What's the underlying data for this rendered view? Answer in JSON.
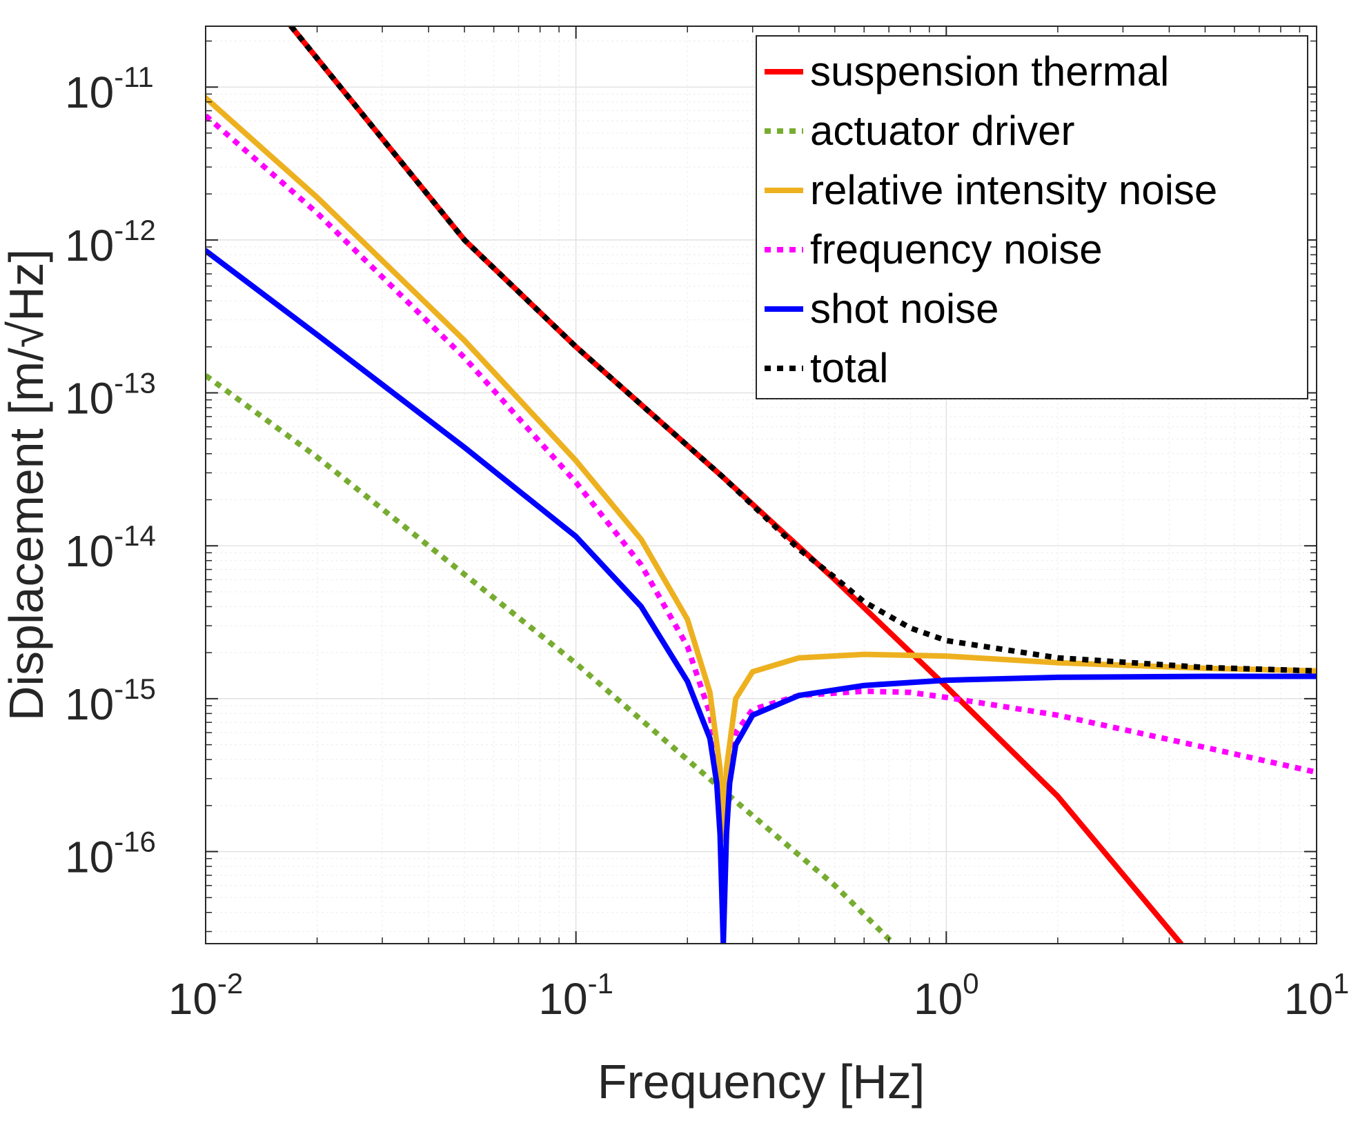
{
  "chart_data": {
    "type": "line",
    "title": "",
    "xlabel": "Frequency [Hz]",
    "ylabel": "Displacement [m/√Hz]",
    "xscale": "log",
    "yscale": "log",
    "xlim": [
      0.01,
      10
    ],
    "ylim": [
      2.5e-17,
      2.5e-11
    ],
    "grid": true,
    "legend_position": "top-right",
    "x_ticks": [
      {
        "base": "10",
        "exp": "-2",
        "value": 0.01
      },
      {
        "base": "10",
        "exp": "-1",
        "value": 0.1
      },
      {
        "base": "10",
        "exp": "0",
        "value": 1
      },
      {
        "base": "10",
        "exp": "1",
        "value": 10
      }
    ],
    "y_ticks": [
      {
        "base": "10",
        "exp": "-11",
        "value": 1e-11
      },
      {
        "base": "10",
        "exp": "-12",
        "value": 1e-12
      },
      {
        "base": "10",
        "exp": "-13",
        "value": 1e-13
      },
      {
        "base": "10",
        "exp": "-14",
        "value": 1e-14
      },
      {
        "base": "10",
        "exp": "-15",
        "value": 1e-15
      },
      {
        "base": "10",
        "exp": "-16",
        "value": 1e-16
      }
    ],
    "series": [
      {
        "name": "suspension thermal",
        "color": "#ff0000",
        "style": "solid",
        "x": [
          0.017,
          0.05,
          0.1,
          0.25,
          0.5,
          1,
          2,
          4.3
        ],
        "y": [
          2.5e-11,
          1e-12,
          2e-13,
          2.8e-14,
          6e-15,
          1.2e-15,
          2.3e-16,
          2.5e-17
        ]
      },
      {
        "name": "actuator driver",
        "color": "#77ac30",
        "style": "dotted",
        "x": [
          0.01,
          0.02,
          0.05,
          0.1,
          0.25,
          0.5,
          0.72
        ],
        "y": [
          1.3e-13,
          3.8e-14,
          6.5e-15,
          1.7e-15,
          2.5e-16,
          6e-17,
          2.5e-17
        ]
      },
      {
        "name": "relative intensity noise",
        "color": "#edb120",
        "style": "solid",
        "x": [
          0.01,
          0.02,
          0.05,
          0.1,
          0.15,
          0.2,
          0.23,
          0.245,
          0.25,
          0.255,
          0.27,
          0.3,
          0.4,
          0.6,
          1,
          2,
          5,
          10
        ],
        "y": [
          8.5e-12,
          1.9e-12,
          2.2e-13,
          3.6e-14,
          1.1e-14,
          3.3e-15,
          1.1e-15,
          3.5e-16,
          1.2e-16,
          3.5e-16,
          1e-15,
          1.5e-15,
          1.85e-15,
          1.95e-15,
          1.9e-15,
          1.72e-15,
          1.58e-15,
          1.52e-15
        ]
      },
      {
        "name": "frequency noise",
        "color": "#ff00ff",
        "style": "dotted",
        "x": [
          0.01,
          0.02,
          0.05,
          0.1,
          0.15,
          0.2,
          0.23,
          0.245,
          0.25,
          0.255,
          0.27,
          0.3,
          0.4,
          0.6,
          0.8,
          1,
          2,
          5,
          10
        ],
        "y": [
          6.5e-12,
          1.5e-12,
          1.7e-13,
          2.6e-14,
          7.5e-15,
          2.2e-15,
          8e-16,
          3e-16,
          1.5e-16,
          3e-16,
          6e-16,
          8.5e-16,
          1.05e-15,
          1.12e-15,
          1.1e-15,
          1.02e-15,
          7.8e-16,
          4.8e-16,
          3.3e-16
        ]
      },
      {
        "name": "shot noise",
        "color": "#0000ff",
        "style": "solid",
        "x": [
          0.01,
          0.02,
          0.05,
          0.1,
          0.15,
          0.2,
          0.23,
          0.24,
          0.245,
          0.25,
          0.255,
          0.26,
          0.27,
          0.3,
          0.4,
          0.6,
          1,
          2,
          5,
          10
        ],
        "y": [
          8.5e-13,
          2.4e-13,
          4.4e-14,
          1.15e-14,
          4e-15,
          1.3e-15,
          5.5e-16,
          2.8e-16,
          1.3e-16,
          2.5e-17,
          1.3e-16,
          2.8e-16,
          5e-16,
          7.8e-16,
          1.05e-15,
          1.22e-15,
          1.32e-15,
          1.38e-15,
          1.4e-15,
          1.4e-15
        ]
      },
      {
        "name": "total",
        "color": "#000000",
        "style": "dotted",
        "x": [
          0.017,
          0.05,
          0.1,
          0.25,
          0.4,
          0.5,
          0.6,
          0.8,
          1,
          2,
          5,
          10
        ],
        "y": [
          2.5e-11,
          1e-12,
          2e-13,
          2.8e-14,
          9.5e-15,
          6.2e-15,
          4.3e-15,
          2.9e-15,
          2.4e-15,
          1.85e-15,
          1.6e-15,
          1.52e-15
        ]
      }
    ]
  }
}
